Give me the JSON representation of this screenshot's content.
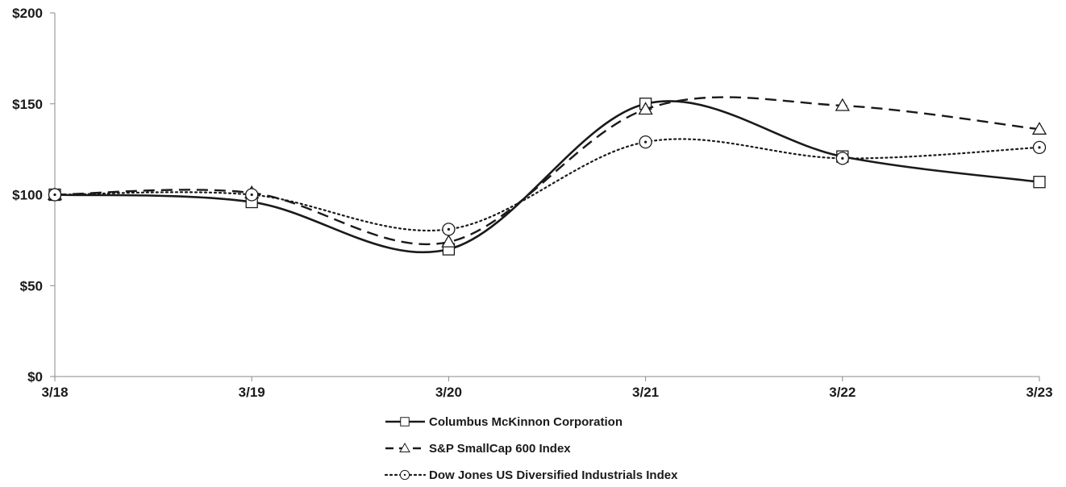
{
  "chart_data": {
    "type": "line",
    "title": "",
    "xlabel": "",
    "ylabel": "",
    "categories": [
      "3/18",
      "3/19",
      "3/20",
      "3/21",
      "3/22",
      "3/23"
    ],
    "y_ticks": [
      "$0",
      "$50",
      "$100",
      "$150",
      "$200"
    ],
    "y_tick_values": [
      0,
      50,
      100,
      150,
      200
    ],
    "ylim": [
      0,
      200
    ],
    "grid": false,
    "legend_position": "bottom-center",
    "series": [
      {
        "name": "Columbus McKinnon Corporation",
        "values": [
          100,
          96,
          70,
          150,
          121,
          107
        ],
        "line_style": "solid",
        "marker": "square",
        "color": "#1a1a1a"
      },
      {
        "name": "S&P SmallCap 600 Index",
        "values": [
          100,
          101,
          74,
          147,
          149,
          136
        ],
        "line_style": "dashed",
        "marker": "triangle",
        "color": "#1a1a1a"
      },
      {
        "name": "Dow Jones US Diversified Industrials Index",
        "values": [
          100,
          100,
          81,
          129,
          120,
          126
        ],
        "line_style": "dotted",
        "marker": "circle",
        "color": "#1a1a1a"
      }
    ]
  }
}
